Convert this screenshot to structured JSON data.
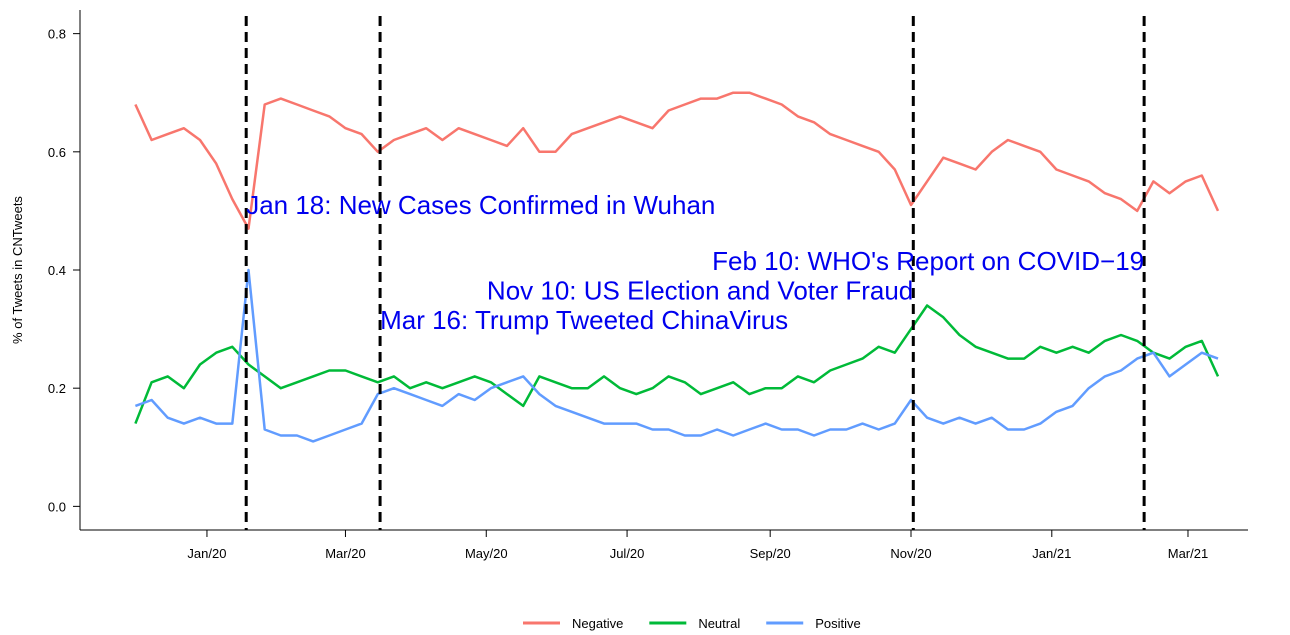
{
  "chart_data": {
    "type": "line",
    "ylabel": "% of Tweets in CNTweets",
    "x": [
      -31,
      -24,
      -17,
      -10,
      -3,
      4,
      11,
      18,
      25,
      32,
      39,
      46,
      53,
      60,
      67,
      74,
      81,
      88,
      95,
      102,
      109,
      116,
      123,
      130,
      137,
      144,
      151,
      158,
      165,
      172,
      179,
      186,
      193,
      200,
      207,
      214,
      221,
      228,
      235,
      242,
      249,
      256,
      263,
      270,
      277,
      284,
      291,
      298,
      305,
      312,
      319,
      326,
      333,
      340,
      347,
      354,
      361,
      368,
      375,
      382,
      389,
      396,
      403,
      410,
      417,
      424,
      431,
      438
    ],
    "series": [
      {
        "name": "Negative",
        "color": "#f8766d",
        "values": [
          0.68,
          0.62,
          0.63,
          0.64,
          0.62,
          0.58,
          0.52,
          0.47,
          0.68,
          0.69,
          0.68,
          0.67,
          0.66,
          0.64,
          0.63,
          0.6,
          0.62,
          0.63,
          0.64,
          0.62,
          0.64,
          0.63,
          0.62,
          0.61,
          0.64,
          0.6,
          0.6,
          0.63,
          0.64,
          0.65,
          0.66,
          0.65,
          0.64,
          0.67,
          0.68,
          0.69,
          0.69,
          0.7,
          0.7,
          0.69,
          0.68,
          0.66,
          0.65,
          0.63,
          0.62,
          0.61,
          0.6,
          0.57,
          0.51,
          0.55,
          0.59,
          0.58,
          0.57,
          0.6,
          0.62,
          0.61,
          0.6,
          0.57,
          0.56,
          0.55,
          0.53,
          0.52,
          0.5,
          0.55,
          0.53,
          0.55,
          0.56,
          0.5
        ]
      },
      {
        "name": "Neutral",
        "color": "#00ba38",
        "values": [
          0.14,
          0.21,
          0.22,
          0.2,
          0.24,
          0.26,
          0.27,
          0.24,
          0.22,
          0.2,
          0.21,
          0.22,
          0.23,
          0.23,
          0.22,
          0.21,
          0.22,
          0.2,
          0.21,
          0.2,
          0.21,
          0.22,
          0.21,
          0.19,
          0.17,
          0.22,
          0.21,
          0.2,
          0.2,
          0.22,
          0.2,
          0.19,
          0.2,
          0.22,
          0.21,
          0.19,
          0.2,
          0.21,
          0.19,
          0.2,
          0.2,
          0.22,
          0.21,
          0.23,
          0.24,
          0.25,
          0.27,
          0.26,
          0.3,
          0.34,
          0.32,
          0.29,
          0.27,
          0.26,
          0.25,
          0.25,
          0.27,
          0.26,
          0.27,
          0.26,
          0.28,
          0.29,
          0.28,
          0.26,
          0.25,
          0.27,
          0.28,
          0.22
        ]
      },
      {
        "name": "Positive",
        "color": "#619cff",
        "values": [
          0.17,
          0.18,
          0.15,
          0.14,
          0.15,
          0.14,
          0.14,
          0.4,
          0.13,
          0.12,
          0.12,
          0.11,
          0.12,
          0.13,
          0.14,
          0.19,
          0.2,
          0.19,
          0.18,
          0.17,
          0.19,
          0.18,
          0.2,
          0.21,
          0.22,
          0.19,
          0.17,
          0.16,
          0.15,
          0.14,
          0.14,
          0.14,
          0.13,
          0.13,
          0.12,
          0.12,
          0.13,
          0.12,
          0.13,
          0.14,
          0.13,
          0.13,
          0.12,
          0.13,
          0.13,
          0.14,
          0.13,
          0.14,
          0.18,
          0.15,
          0.14,
          0.15,
          0.14,
          0.15,
          0.13,
          0.13,
          0.14,
          0.16,
          0.17,
          0.2,
          0.22,
          0.23,
          0.25,
          0.26,
          0.22,
          0.24,
          0.26,
          0.25
        ]
      }
    ],
    "xlim": [
      -55,
      451
    ],
    "xticks": [
      {
        "value": 0,
        "label": "Jan/20"
      },
      {
        "value": 60,
        "label": "Mar/20"
      },
      {
        "value": 121,
        "label": "May/20"
      },
      {
        "value": 182,
        "label": "Jul/20"
      },
      {
        "value": 244,
        "label": "Sep/20"
      },
      {
        "value": 305,
        "label": "Nov/20"
      },
      {
        "value": 366,
        "label": "Jan/21"
      },
      {
        "value": 425,
        "label": "Mar/21"
      }
    ],
    "ylim": [
      -0.04,
      0.84
    ],
    "yticks": [
      {
        "value": 0,
        "label": "0.0"
      },
      {
        "value": 0.2,
        "label": "0.2"
      },
      {
        "value": 0.4,
        "label": "0.4"
      },
      {
        "value": 0.6,
        "label": "0.6"
      },
      {
        "value": 0.8,
        "label": "0.8"
      }
    ],
    "annotations": [
      {
        "x": 17,
        "y": 0.51,
        "anchor": "start",
        "text": "Jan 18: New Cases Confirmed in Wuhan"
      },
      {
        "x": 75,
        "y": 0.315,
        "anchor": "start",
        "text": "Mar 16: Trump Tweeted ChinaVirus"
      },
      {
        "x": 306,
        "y": 0.365,
        "anchor": "end",
        "text": "Nov 10: US Election and Voter Fraud"
      },
      {
        "x": 406,
        "y": 0.415,
        "anchor": "end",
        "text": "Feb 10: WHO's Report on COVID−19"
      }
    ],
    "legend": "bottom"
  }
}
